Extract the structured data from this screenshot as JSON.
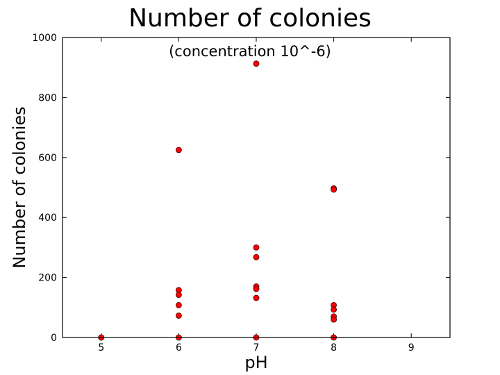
{
  "chart_data": {
    "type": "scatter",
    "title": "Number of colonies",
    "subtitle": "(concentration 10^-6)",
    "xlabel": "pH",
    "ylabel": "Number of colonies",
    "xlim": [
      4.5,
      9.5
    ],
    "ylim": [
      0,
      1000
    ],
    "xticks": [
      5,
      6,
      7,
      8,
      9
    ],
    "yticks": [
      0,
      200,
      400,
      600,
      800,
      1000
    ],
    "grid": false,
    "marker_color": "#ff0000",
    "series": [
      {
        "x": [
          5,
          5,
          6,
          6,
          6,
          6,
          6,
          6,
          7,
          7,
          7,
          7,
          7,
          7,
          7,
          8,
          8,
          8,
          8,
          8,
          8,
          8
        ],
        "y": [
          0,
          0,
          625,
          158,
          142,
          108,
          73,
          0,
          913,
          300,
          268,
          170,
          162,
          132,
          0,
          497,
          493,
          108,
          93,
          70,
          60,
          0
        ]
      }
    ]
  }
}
